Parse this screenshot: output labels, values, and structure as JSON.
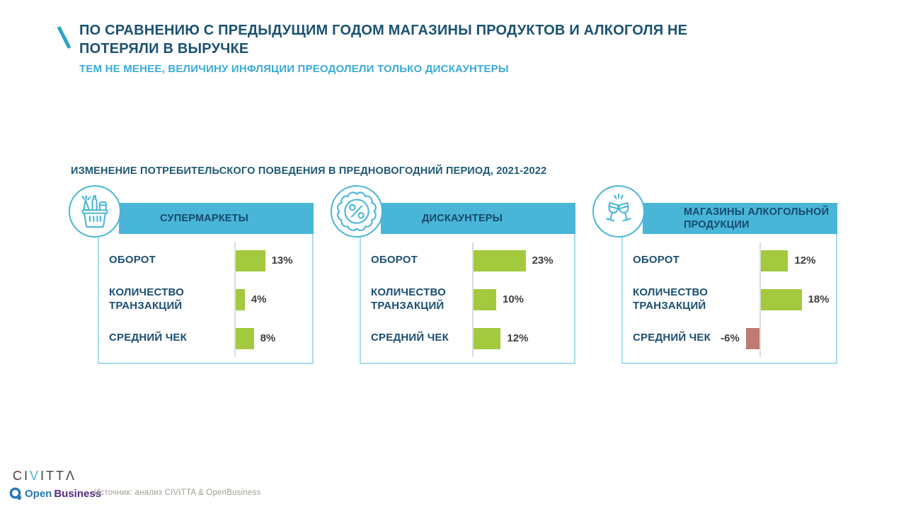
{
  "header": {
    "title_lines": [
      "ПО СРАВНЕНИЮ С ПРЕДЫДУЩИМ ГОДОМ МАГАЗИНЫ ПРОДУКТОВ И АЛКОГОЛЯ НЕ",
      "ПОТЕРЯЛИ В ВЫРУЧКЕ"
    ],
    "subtitle": "ТЕМ НЕ МЕНЕЕ, ВЕЛИЧИНУ ИНФЛЯЦИИ ПРЕОДОЛЕЛИ ТОЛЬКО ДИСКАУНТЕРЫ"
  },
  "section_title": "ИЗМЕНЕНИЕ ПОТРЕБИТЕЛЬСКОГО ПОВЕДЕНИЯ В ПРЕДНОВОГОДНИЙ ПЕРИОД, 2021-2022",
  "chart_data": {
    "type": "bar",
    "orientation": "horizontal",
    "unit": "%",
    "axis_baseline": 0,
    "grid": false,
    "legend": "none",
    "bar_color_positive": "#a3c93e",
    "bar_color_negative": "#bf7b72",
    "charts": [
      {
        "title": "СУПЕРМАРКЕТЫ",
        "icon": "shopping-basket-icon",
        "categories": [
          "ОБОРОТ",
          "КОЛИЧЕСТВО ТРАНЗАКЦИЙ",
          "СРЕДНИЙ ЧЕК"
        ],
        "values": [
          13,
          4,
          8
        ],
        "value_labels": [
          "13%",
          "4%",
          "8%"
        ]
      },
      {
        "title": "ДИСКАУНТЕРЫ",
        "icon": "percent-badge-icon",
        "categories": [
          "ОБОРОТ",
          "КОЛИЧЕСТВО ТРАНЗАКЦИЙ",
          "СРЕДНИЙ ЧЕК"
        ],
        "values": [
          23,
          10,
          12
        ],
        "value_labels": [
          "23%",
          "10%",
          "12%"
        ]
      },
      {
        "title": "МАГАЗИНЫ АЛКОГОЛЬНОЙ ПРОДУКЦИИ",
        "icon": "wine-glasses-icon",
        "categories": [
          "ОБОРОТ",
          "КОЛИЧЕСТВО ТРАНЗАКЦИЙ",
          "СРЕДНИЙ ЧЕК"
        ],
        "values": [
          12,
          18,
          -6
        ],
        "value_labels": [
          "12%",
          "18%",
          "-6%"
        ]
      }
    ]
  },
  "footer": {
    "civitta": {
      "prefix": "CI",
      "highlight": "V",
      "suffix": "ITTΛ"
    },
    "openbusiness": {
      "word1": "Open",
      "word2": "Business"
    },
    "source": "Источник: анализ CIVITTA & OpenBusiness"
  },
  "colors": {
    "accent_blue": "#49b6d8",
    "title_navy": "#1b5271",
    "subtitle_blue": "#3aabd7",
    "section_teal": "#1e5a74",
    "label_navy": "#1c4f72",
    "bar_green": "#a3c93e",
    "bar_red": "#bf7b72",
    "card_border": "#a9dcee"
  }
}
